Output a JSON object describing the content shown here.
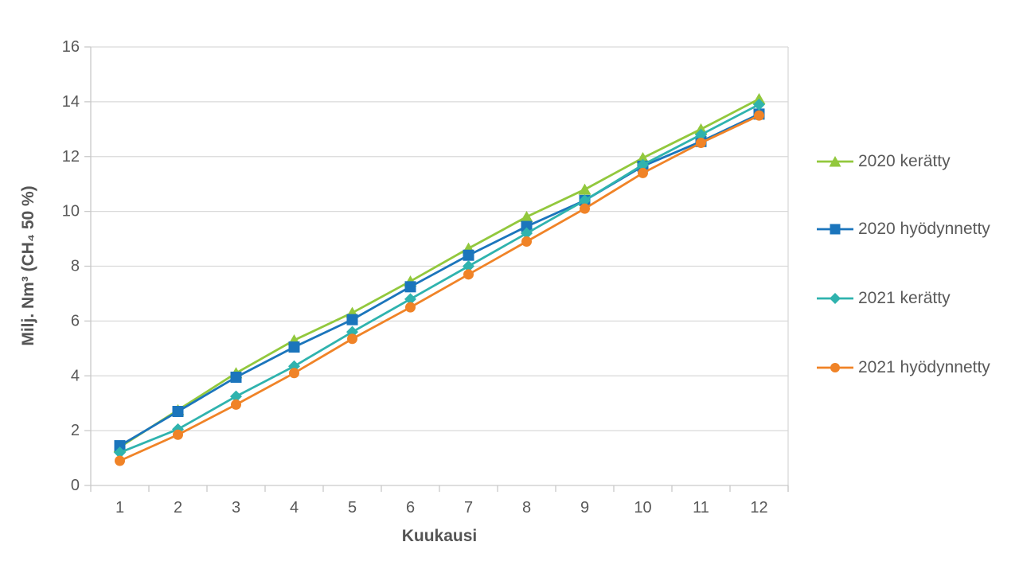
{
  "chart_data": {
    "type": "line",
    "title": "",
    "xlabel": "Kuukausi",
    "ylabel": "Milj. Nm³ (CH₄ 50 %)",
    "x": [
      1,
      2,
      3,
      4,
      5,
      6,
      7,
      8,
      9,
      10,
      11,
      12
    ],
    "ylim": [
      0,
      16
    ],
    "ytick_step": 2,
    "ytick_labels": [
      "0",
      "2",
      "4",
      "6",
      "8",
      "10",
      "12",
      "14",
      "16"
    ],
    "grid": true,
    "legend_position": "right",
    "series": [
      {
        "name": "2020 kerätty",
        "marker": "triangle",
        "color": "#92C83D",
        "values": [
          1.4,
          2.75,
          4.1,
          5.3,
          6.3,
          7.45,
          8.65,
          9.8,
          10.8,
          11.95,
          13.0,
          14.1
        ]
      },
      {
        "name": "2020 hyödynnetty",
        "marker": "square",
        "color": "#1B75BC",
        "values": [
          1.45,
          2.7,
          3.95,
          5.05,
          6.05,
          7.25,
          8.4,
          9.45,
          10.4,
          11.65,
          12.55,
          13.55
        ]
      },
      {
        "name": "2021 kerätty",
        "marker": "diamond",
        "color": "#2FB3AE",
        "values": [
          1.2,
          2.05,
          3.25,
          4.35,
          5.6,
          6.8,
          8.0,
          9.2,
          10.4,
          11.7,
          12.8,
          13.9
        ]
      },
      {
        "name": "2021 hyödynnetty",
        "marker": "circle",
        "color": "#F08327",
        "values": [
          0.9,
          1.85,
          2.95,
          4.1,
          5.35,
          6.5,
          7.7,
          8.9,
          10.1,
          11.4,
          12.5,
          13.5
        ]
      }
    ],
    "colors": {
      "gridline": "#D9D9D9",
      "axis": "#C9C9C9",
      "tick": "#C9C9C9",
      "tick_label": "#595959",
      "axis_title": "#555555",
      "legend_text": "#595959",
      "background": "#FFFFFF"
    }
  }
}
